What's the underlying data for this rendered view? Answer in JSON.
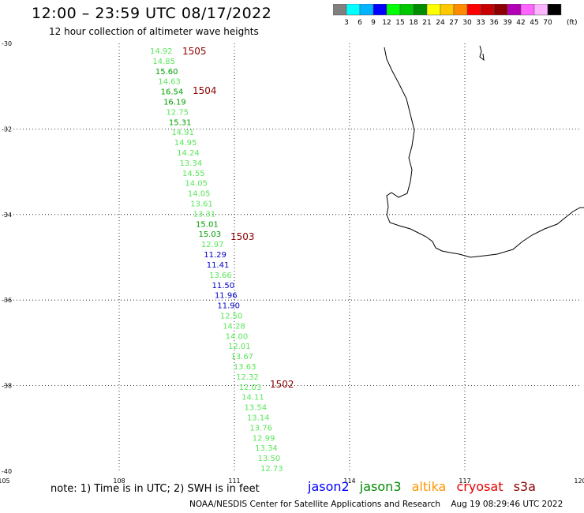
{
  "header": {
    "title": "12:00 – 23:59 UTC 08/17/2022",
    "subtitle": "12 hour collection of altimeter wave heights"
  },
  "color_scale": {
    "colors": [
      "#808080",
      "#00ffff",
      "#00b4ff",
      "#0000ff",
      "#00ff00",
      "#00c800",
      "#008c00",
      "#ffff00",
      "#ffc800",
      "#ff8c00",
      "#ff0000",
      "#c80000",
      "#8c0000",
      "#b400b4",
      "#ff64ff",
      "#ffb4ff",
      "#000000"
    ],
    "labels": [
      "3",
      "6",
      "9",
      "12",
      "15",
      "18",
      "21",
      "24",
      "27",
      "30",
      "33",
      "36",
      "39",
      "42",
      "45",
      "70"
    ],
    "unit": "(ft)"
  },
  "map": {
    "lon_range": [
      105,
      120
    ],
    "lat_range": [
      -40,
      -30
    ],
    "lon_labels": [
      "105",
      "108",
      "111",
      "114",
      "117",
      "120"
    ],
    "lat_labels": [
      "-30",
      "-32",
      "-34",
      "-36",
      "-38",
      "-40"
    ],
    "grid": "dotted",
    "coastline": "southwest Australia"
  },
  "observations": [
    {
      "t": "14.92",
      "c": "light"
    },
    {
      "t": "14.85",
      "c": "light"
    },
    {
      "t": "15.60",
      "c": "green"
    },
    {
      "t": "14.63",
      "c": "light"
    },
    {
      "t": "16.54",
      "c": "green"
    },
    {
      "t": "16.19",
      "c": "green"
    },
    {
      "t": "12.75",
      "c": "light"
    },
    {
      "t": "15.31",
      "c": "green"
    },
    {
      "t": "14.91",
      "c": "light"
    },
    {
      "t": "14.95",
      "c": "light"
    },
    {
      "t": "14.24",
      "c": "light"
    },
    {
      "t": "13.34",
      "c": "light"
    },
    {
      "t": "14.55",
      "c": "light"
    },
    {
      "t": "14.05",
      "c": "light"
    },
    {
      "t": "14.05",
      "c": "light"
    },
    {
      "t": "13.61",
      "c": "light"
    },
    {
      "t": "13.31",
      "c": "light"
    },
    {
      "t": "15.01",
      "c": "green"
    },
    {
      "t": "15.03",
      "c": "green"
    },
    {
      "t": "12.97",
      "c": "light"
    },
    {
      "t": "11.29",
      "c": "blue"
    },
    {
      "t": "11.41",
      "c": "blue"
    },
    {
      "t": "13.66",
      "c": "light"
    },
    {
      "t": "11.50",
      "c": "blue"
    },
    {
      "t": "11.96",
      "c": "blue"
    },
    {
      "t": "11.90",
      "c": "blue"
    },
    {
      "t": "12.50",
      "c": "light"
    },
    {
      "t": "14.28",
      "c": "light"
    },
    {
      "t": "14.00",
      "c": "light"
    },
    {
      "t": "12.01",
      "c": "light"
    },
    {
      "t": "13.67",
      "c": "light"
    },
    {
      "t": "13.63",
      "c": "light"
    },
    {
      "t": "12.32",
      "c": "light"
    },
    {
      "t": "12.03",
      "c": "light"
    },
    {
      "t": "14.11",
      "c": "light"
    },
    {
      "t": "13.54",
      "c": "light"
    },
    {
      "t": "13.14",
      "c": "light"
    },
    {
      "t": "13.76",
      "c": "light"
    },
    {
      "t": "12.99",
      "c": "light"
    },
    {
      "t": "13.34",
      "c": "light"
    },
    {
      "t": "13.50",
      "c": "light"
    },
    {
      "t": "12.73",
      "c": "light"
    }
  ],
  "time_marks": [
    "1505",
    "1504",
    "1503",
    "1502"
  ],
  "note": "note:  1) Time is in UTC;  2) SWH is in feet",
  "legend": [
    {
      "name": "jason2",
      "color": "#0000ff"
    },
    {
      "name": "jason3",
      "color": "#008c00"
    },
    {
      "name": "altika",
      "color": "#ff9600"
    },
    {
      "name": "cryosat",
      "color": "#e60000"
    },
    {
      "name": "s3a",
      "color": "#8c0000"
    }
  ],
  "footer": "NOAA/NESDIS Center for Satellite Applications and Research    Aug 19 08:29:46 UTC 2022"
}
